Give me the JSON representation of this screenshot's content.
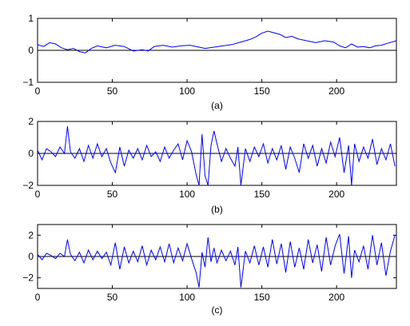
{
  "chart_data": [
    {
      "type": "line",
      "label": "(a)",
      "xlim": [
        0,
        240
      ],
      "ylim": [
        -1,
        1
      ],
      "xticks": [
        0,
        50,
        100,
        150,
        200
      ],
      "yticks": [
        -1,
        0,
        1
      ],
      "zero_line": true,
      "color": "#0000ff",
      "x": [
        0,
        4,
        8,
        12,
        16,
        20,
        24,
        28,
        32,
        36,
        40,
        46,
        52,
        58,
        64,
        70,
        74,
        78,
        84,
        90,
        96,
        102,
        108,
        112,
        118,
        124,
        130,
        136,
        142,
        146,
        150,
        154,
        158,
        162,
        166,
        170,
        174,
        180,
        186,
        192,
        198,
        202,
        206,
        210,
        214,
        218,
        222,
        226,
        230,
        234,
        240
      ],
      "y": [
        0.18,
        0.12,
        0.24,
        0.2,
        0.08,
        0.02,
        0.06,
        -0.04,
        -0.08,
        0.06,
        0.14,
        0.08,
        0.16,
        0.12,
        -0.02,
        0.02,
        -0.02,
        0.12,
        0.16,
        0.1,
        0.14,
        0.16,
        0.1,
        0.06,
        0.1,
        0.14,
        0.18,
        0.26,
        0.34,
        0.42,
        0.54,
        0.6,
        0.55,
        0.5,
        0.4,
        0.44,
        0.36,
        0.3,
        0.24,
        0.3,
        0.26,
        0.14,
        0.08,
        0.2,
        0.1,
        0.12,
        0.08,
        0.14,
        0.16,
        0.22,
        0.3
      ]
    },
    {
      "type": "line",
      "label": "(b)",
      "xlim": [
        0,
        240
      ],
      "ylim": [
        -2,
        2
      ],
      "xticks": [
        0,
        50,
        100,
        150,
        200
      ],
      "yticks": [
        -2,
        0,
        2
      ],
      "zero_line": true,
      "color": "#0000ff",
      "x": [
        0,
        3,
        6,
        9,
        12,
        15,
        18,
        20,
        22,
        25,
        28,
        31,
        34,
        37,
        40,
        43,
        46,
        49,
        52,
        55,
        58,
        61,
        64,
        67,
        70,
        73,
        76,
        79,
        82,
        85,
        88,
        91,
        94,
        97,
        100,
        103,
        106,
        108,
        110,
        112,
        114,
        116,
        118,
        120,
        123,
        126,
        129,
        132,
        134,
        136,
        139,
        142,
        145,
        148,
        151,
        154,
        157,
        160,
        163,
        166,
        169,
        172,
        175,
        178,
        181,
        184,
        187,
        190,
        193,
        196,
        199,
        202,
        205,
        208,
        210,
        212,
        215,
        218,
        221,
        224,
        227,
        230,
        233,
        236,
        239
      ],
      "y": [
        0.2,
        -0.4,
        0.3,
        0.1,
        -0.2,
        0.4,
        0.0,
        1.7,
        0.1,
        -0.3,
        0.3,
        -0.5,
        0.5,
        -0.3,
        0.6,
        -0.2,
        0.3,
        -0.6,
        -1.2,
        0.4,
        -0.8,
        0.2,
        -0.3,
        0.3,
        -0.4,
        0.5,
        -0.2,
        0.1,
        -0.5,
        0.4,
        -0.3,
        0.2,
        0.6,
        -0.4,
        0.8,
        0.1,
        -1.3,
        -2.0,
        1.2,
        -1.4,
        -2.0,
        0.5,
        1.4,
        0.6,
        -0.5,
        0.3,
        -0.3,
        -0.8,
        0.4,
        -2.0,
        0.3,
        -0.5,
        0.4,
        -0.2,
        0.6,
        -0.6,
        0.3,
        -0.4,
        0.5,
        -1.0,
        0.4,
        -0.3,
        -1.2,
        0.6,
        -0.3,
        0.5,
        -0.8,
        0.3,
        -0.6,
        0.7,
        -0.2,
        1.0,
        -1.2,
        0.5,
        -2.0,
        0.6,
        -0.5,
        0.4,
        -0.3,
        0.9,
        -0.7,
        0.3,
        -0.4,
        0.6,
        -0.8
      ]
    },
    {
      "type": "line",
      "label": "(c)",
      "xlim": [
        0,
        240
      ],
      "ylim": [
        -3,
        3
      ],
      "xticks": [
        0,
        50,
        100,
        150,
        200
      ],
      "yticks": [
        -2,
        0,
        2
      ],
      "zero_line": true,
      "color": "#0000ff",
      "x": [
        0,
        3,
        6,
        9,
        12,
        15,
        18,
        20,
        22,
        25,
        28,
        31,
        34,
        37,
        40,
        43,
        46,
        49,
        52,
        55,
        58,
        61,
        64,
        67,
        70,
        73,
        76,
        79,
        82,
        85,
        88,
        91,
        94,
        97,
        100,
        103,
        106,
        108,
        110,
        112,
        114,
        116,
        118,
        120,
        123,
        126,
        129,
        132,
        134,
        136,
        139,
        142,
        145,
        148,
        151,
        154,
        157,
        160,
        163,
        166,
        169,
        172,
        175,
        178,
        181,
        184,
        187,
        190,
        193,
        196,
        199,
        202,
        205,
        208,
        210,
        212,
        215,
        218,
        221,
        224,
        227,
        230,
        233,
        236,
        239
      ],
      "y": [
        0.2,
        -0.3,
        0.3,
        0.1,
        -0.2,
        0.3,
        0.0,
        1.6,
        0.2,
        -0.4,
        0.4,
        -0.6,
        0.6,
        -0.3,
        0.5,
        -0.2,
        0.4,
        -0.8,
        1.3,
        -1.2,
        0.9,
        -0.6,
        0.5,
        -0.5,
        1.0,
        -0.8,
        0.6,
        -0.3,
        0.9,
        -0.5,
        1.2,
        -0.6,
        0.8,
        -0.4,
        1.2,
        -0.2,
        -1.5,
        -2.9,
        0.4,
        -1.0,
        1.8,
        -0.5,
        0.8,
        -0.6,
        0.6,
        -0.4,
        0.5,
        -0.8,
        0.9,
        -2.9,
        0.5,
        -0.6,
        1.0,
        -0.8,
        0.9,
        -1.0,
        1.6,
        -0.7,
        1.2,
        -1.5,
        1.4,
        -1.0,
        0.8,
        -1.2,
        1.6,
        -0.6,
        1.1,
        -1.4,
        1.8,
        -0.8,
        1.0,
        2.1,
        -1.6,
        1.9,
        -2.0,
        0.6,
        -0.5,
        1.0,
        -1.2,
        2.0,
        -0.8,
        1.3,
        -1.8,
        0.5,
        2.0
      ]
    }
  ]
}
